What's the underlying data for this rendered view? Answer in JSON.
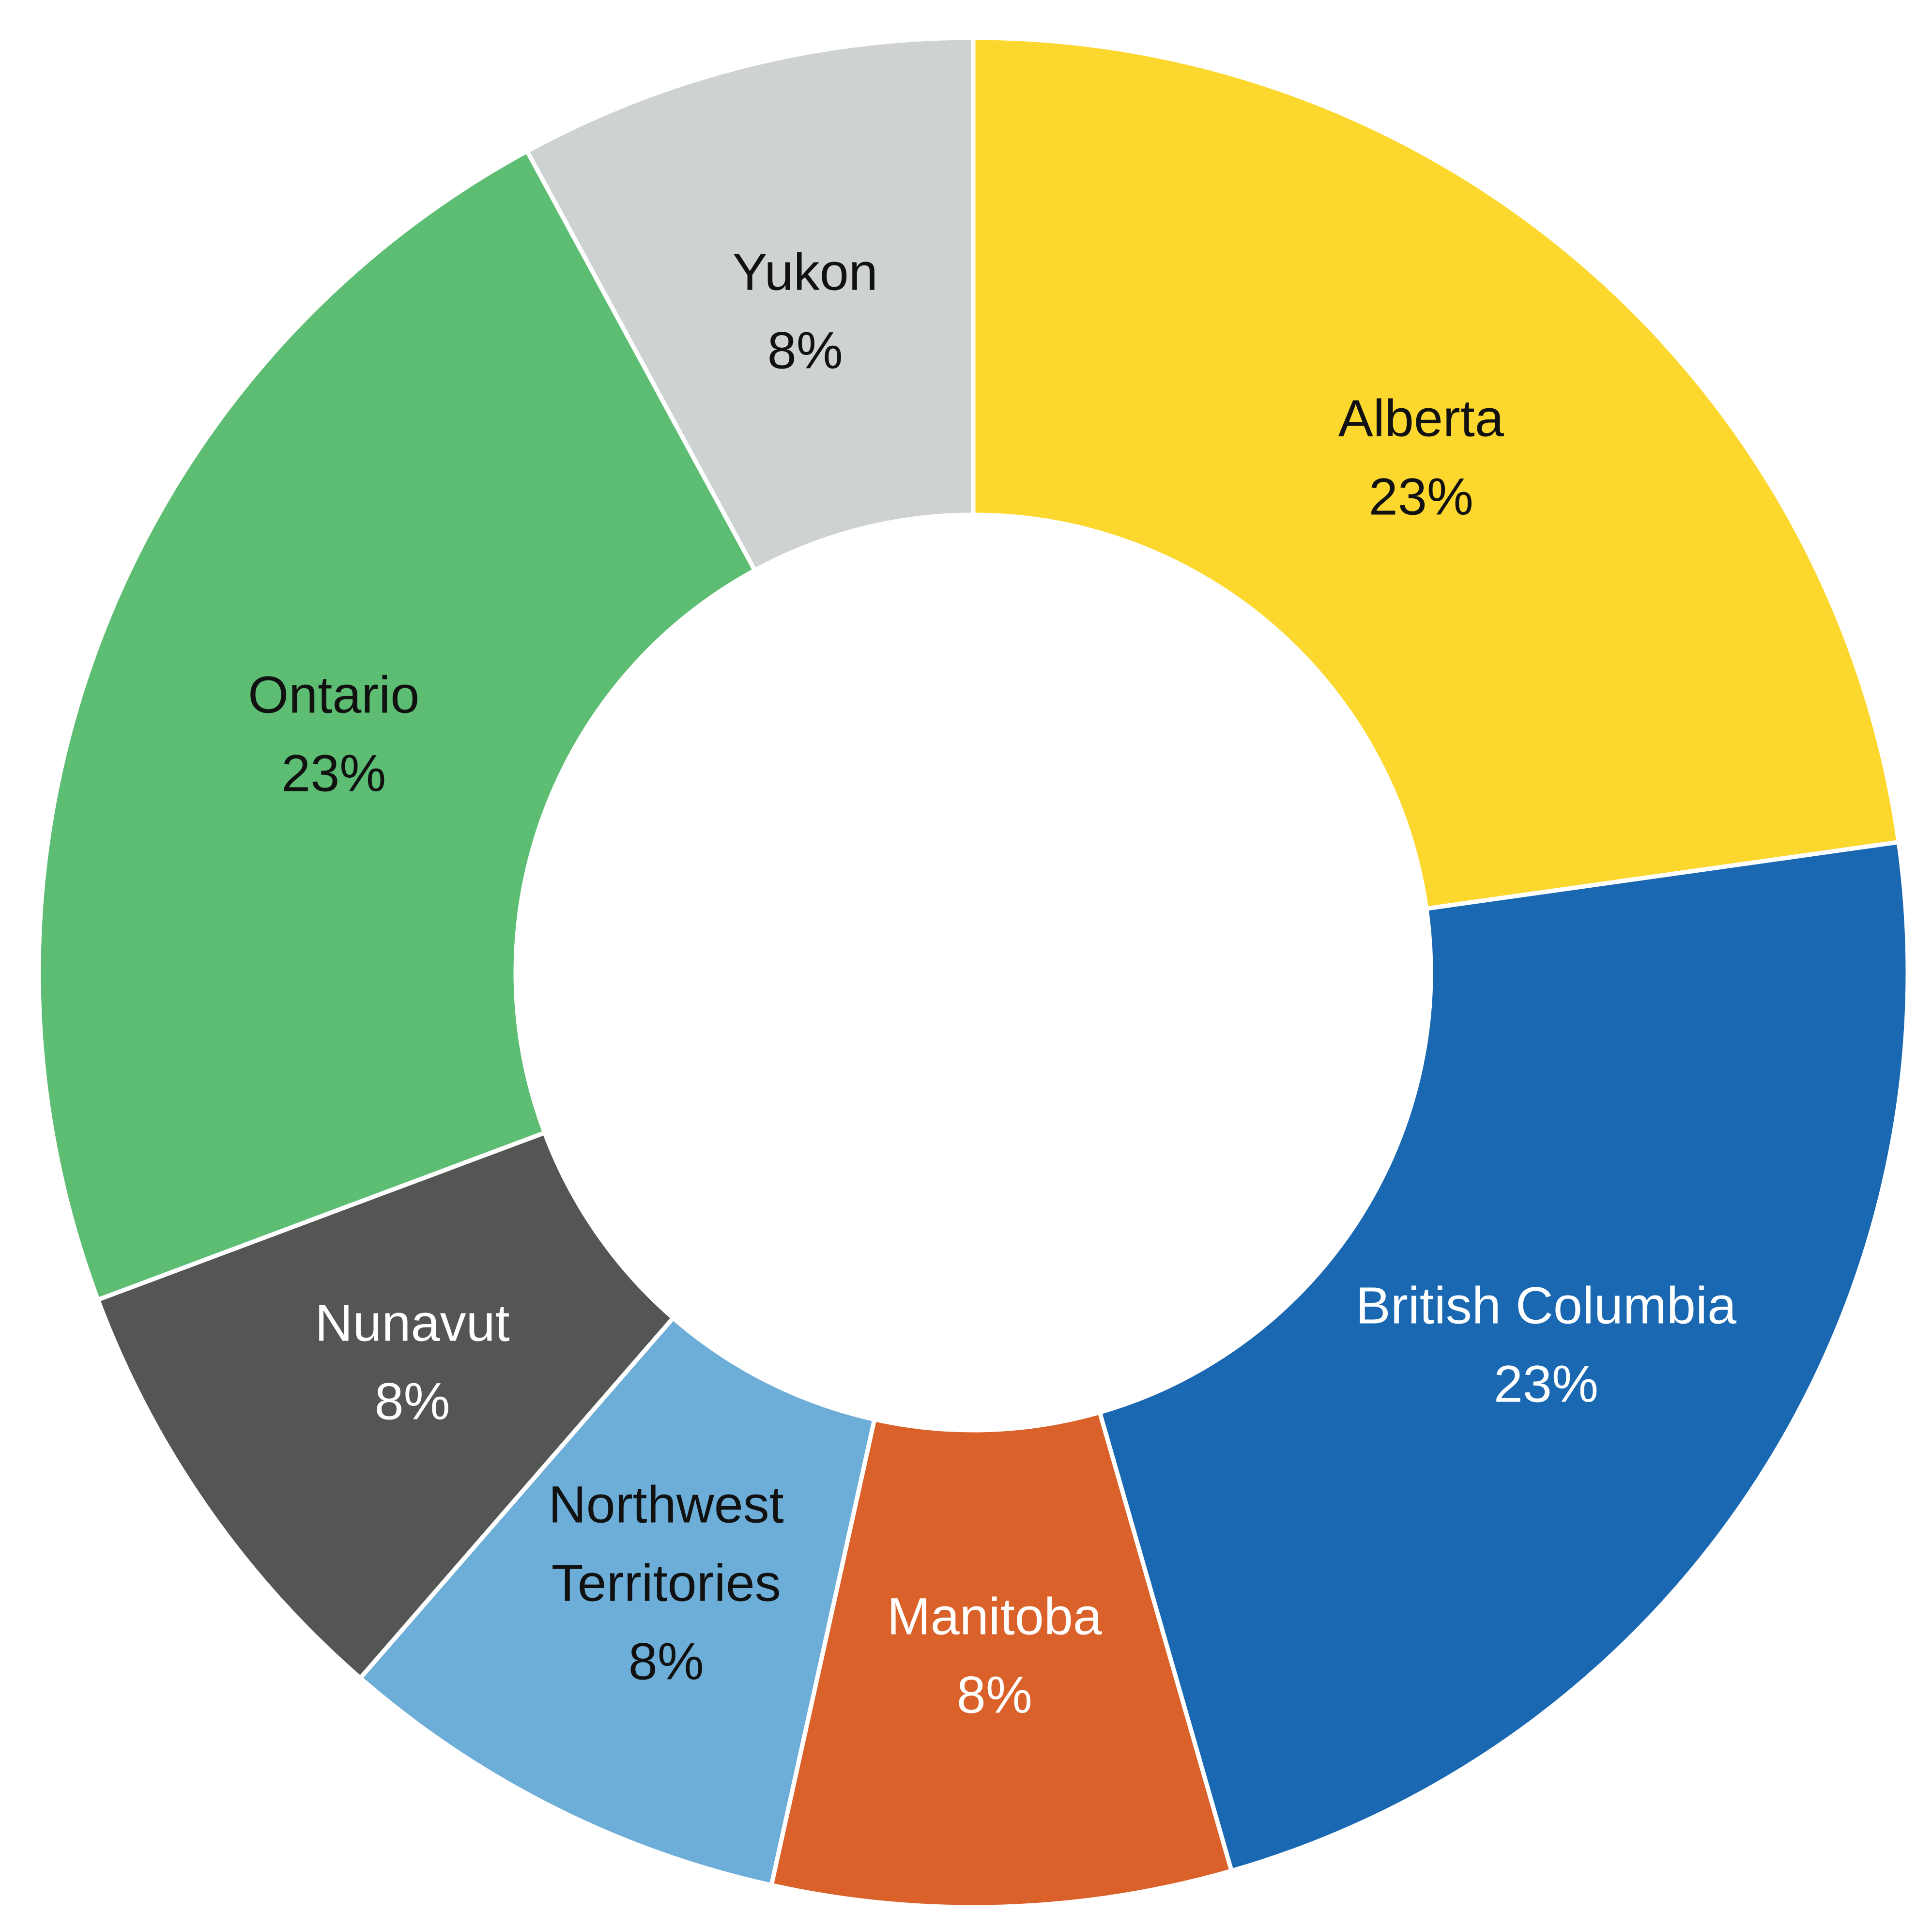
{
  "chart_data": {
    "type": "pie",
    "subtype": "donut",
    "title": "",
    "slices": [
      {
        "label": [
          "Alberta"
        ],
        "percent_label": "23%",
        "value": 23,
        "color": "#FCD82E",
        "text_color": "#111111"
      },
      {
        "label": [
          "British Columbia"
        ],
        "percent_label": "23%",
        "value": 23,
        "color": "#1A68B2",
        "text_color": "#ffffff"
      },
      {
        "label": [
          "Manitoba"
        ],
        "percent_label": "8%",
        "value": 8,
        "color": "#DA6129",
        "text_color": "#ffffff"
      },
      {
        "label": [
          "Northwest",
          "Territories"
        ],
        "percent_label": "8%",
        "value": 8,
        "color": "#6DAED8",
        "text_color": "#111111"
      },
      {
        "label": [
          "Nunavut"
        ],
        "percent_label": "8%",
        "value": 8,
        "color": "#545654",
        "text_color": "#ffffff"
      },
      {
        "label": [
          "Ontario"
        ],
        "percent_label": "23%",
        "value": 23,
        "color": "#5DBD73",
        "text_color": "#111111"
      },
      {
        "label": [
          "Yukon"
        ],
        "percent_label": "8%",
        "value": 8,
        "color": "#CFD2D3",
        "text_color": "#111111"
      }
    ],
    "start_angle_deg": 0,
    "direction": "clockwise",
    "legend": "none",
    "separator_color": "#ffffff"
  }
}
